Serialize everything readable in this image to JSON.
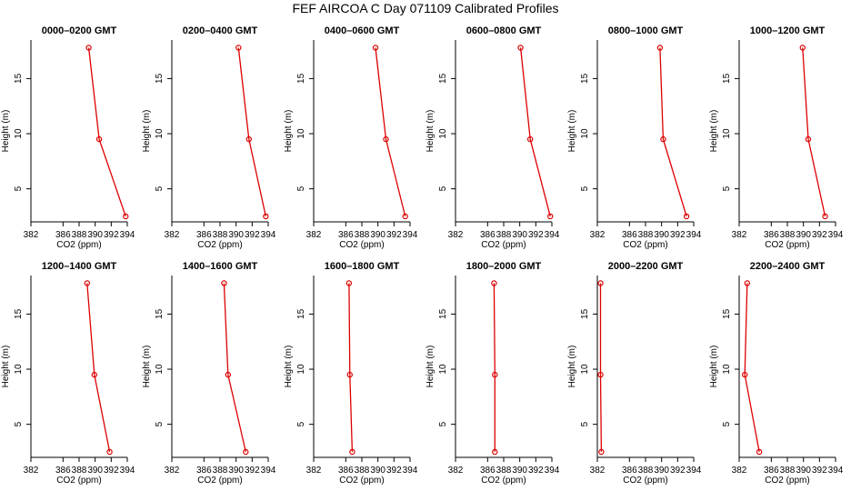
{
  "figure": {
    "title": "FEF AIRCOA C  Day 071109  Calibrated Profiles"
  },
  "chart_data": {
    "type": "line",
    "title": "FEF AIRCOA C  Day 071109  Calibrated Profiles",
    "xlabel": "CO2 (ppm)",
    "ylabel": "Height (m)",
    "xlim": [
      382,
      394
    ],
    "ylim": [
      2,
      18.5
    ],
    "xticks": [
      382,
      386,
      388,
      390,
      392,
      394
    ],
    "yticks": [
      5,
      10,
      15
    ],
    "series_color": "#dd0000",
    "panels": [
      {
        "title": "0000–0200 GMT",
        "heights": [
          17.8,
          9.5,
          2.5
        ],
        "co2": [
          389.2,
          390.5,
          393.8
        ]
      },
      {
        "title": "0200–0400 GMT",
        "heights": [
          17.8,
          9.5,
          2.5
        ],
        "co2": [
          390.3,
          391.6,
          393.7
        ]
      },
      {
        "title": "0400–0600 GMT",
        "heights": [
          17.8,
          9.5,
          2.5
        ],
        "co2": [
          389.7,
          391.0,
          393.4
        ]
      },
      {
        "title": "0600–0800 GMT",
        "heights": [
          17.8,
          9.5,
          2.5
        ],
        "co2": [
          390.1,
          391.3,
          393.8
        ]
      },
      {
        "title": "0800–1000 GMT",
        "heights": [
          17.8,
          9.5,
          2.5
        ],
        "co2": [
          389.8,
          390.2,
          393.1
        ]
      },
      {
        "title": "1000–1200 GMT",
        "heights": [
          17.8,
          9.5,
          2.5
        ],
        "co2": [
          389.9,
          390.6,
          392.7
        ]
      },
      {
        "title": "1200–1400 GMT",
        "heights": [
          17.8,
          9.5,
          2.5
        ],
        "co2": [
          389.0,
          389.9,
          391.8
        ]
      },
      {
        "title": "1400–1600 GMT",
        "heights": [
          17.8,
          9.5,
          2.5
        ],
        "co2": [
          388.5,
          389.0,
          391.2
        ]
      },
      {
        "title": "1600–1800 GMT",
        "heights": [
          17.8,
          9.5,
          2.5
        ],
        "co2": [
          386.4,
          386.5,
          386.8
        ]
      },
      {
        "title": "1800–2000 GMT",
        "heights": [
          17.8,
          9.5,
          2.5
        ],
        "co2": [
          386.8,
          386.9,
          386.9
        ]
      },
      {
        "title": "2000–2200 GMT",
        "heights": [
          17.8,
          9.5,
          2.5
        ],
        "co2": [
          382.4,
          382.4,
          382.5
        ]
      },
      {
        "title": "2200–2400 GMT",
        "heights": [
          17.8,
          9.5,
          2.5
        ],
        "co2": [
          383.0,
          382.7,
          384.5
        ]
      }
    ]
  }
}
